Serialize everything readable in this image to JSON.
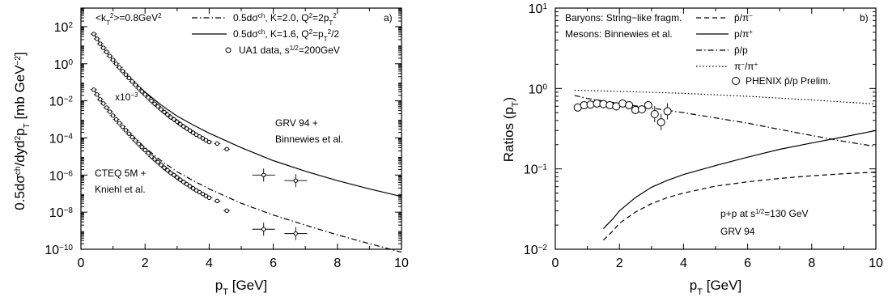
{
  "chart_data": [
    {
      "type": "line",
      "panel_label": "a)",
      "xlabel_base": "p",
      "xlabel_sub": "T",
      "xlabel_unit": " [GeV]",
      "ylabel": "0.5dσ^ch/dyd^2p_T [mb GeV^-2]",
      "xlim": [
        0,
        10
      ],
      "ylim": [
        1e-10,
        1000
      ],
      "yscale": "log",
      "x_ticks": [
        "0",
        "2",
        "4",
        "6",
        "8",
        "10"
      ],
      "y_ticks": [
        "10^-10",
        "10^-8",
        "10^-6",
        "10^-4",
        "10^-2",
        "10^0",
        "10^2"
      ],
      "annotations": {
        "kt": "<k_T^2>=0.8GeV^2",
        "scale": "x10^-3",
        "grv_line1": "GRV 94 +",
        "grv_line2": "Binnewies et al.",
        "cteq_line1": "CTEQ 5M +",
        "cteq_line2": "Kniehl et al."
      },
      "legend": {
        "position": "top-right",
        "entries": [
          {
            "style": "dash-dot",
            "label": "0.5dσ^ch, K=2.0, Q^2=2p_T^2"
          },
          {
            "style": "solid",
            "label": "0.5dσ^ch, K=1.6, Q^2=p_T^2/2"
          },
          {
            "style": "open-circle",
            "label": "UA1 data, s^1/2=200GeV"
          }
        ]
      },
      "series": [
        {
          "style": "solid",
          "x": [
            0.4,
            0.6,
            0.8,
            1.0,
            1.2,
            1.5,
            2.0,
            2.5,
            3.0,
            3.5,
            4.0,
            5.0,
            6.0,
            7.0,
            8.0,
            9.0,
            10.0
          ],
          "y": [
            40,
            12,
            4,
            1.6,
            0.6,
            0.18,
            0.03,
            0.006,
            0.0015,
            0.0005,
            0.00018,
            3e-05,
            6e-06,
            1.6e-06,
            5e-07,
            1.8e-07,
            7e-08
          ]
        },
        {
          "style": "dash-dot",
          "x": [
            0.4,
            0.6,
            0.8,
            1.0,
            1.2,
            1.5,
            2.0,
            2.5,
            3.0,
            3.5,
            4.0,
            5.0,
            6.0,
            7.0,
            8.0,
            9.0,
            10.0
          ],
          "y": [
            0.04,
            0.012,
            0.004,
            0.0016,
            0.0006,
            0.00018,
            3e-05,
            6e-06,
            1.5e-06,
            5e-07,
            1.8e-07,
            3e-08,
            7e-09,
            2e-09,
            6e-10,
            2e-10,
            7e-11
          ]
        },
        {
          "style": "open-circle",
          "x": [
            0.4,
            0.5,
            0.6,
            0.7,
            0.8,
            0.9,
            1.0,
            1.1,
            1.2,
            1.3,
            1.4,
            1.5,
            1.6,
            1.7,
            1.8,
            1.9,
            2.0,
            2.1,
            2.2,
            2.3,
            2.4,
            2.5,
            2.6,
            2.7,
            2.8,
            2.9,
            3.0,
            3.1,
            3.2,
            3.3,
            3.4,
            3.5,
            3.6,
            3.7,
            3.8,
            3.9,
            4.0,
            4.25,
            4.55,
            5.7,
            6.7
          ],
          "y": [
            40,
            22,
            12,
            7.2,
            4.3,
            2.6,
            1.6,
            1.0,
            0.63,
            0.4,
            0.26,
            0.17,
            0.11,
            0.072,
            0.048,
            0.032,
            0.022,
            0.015,
            0.01,
            0.007,
            0.005,
            0.0035,
            0.0025,
            0.0018,
            0.0013,
            0.001,
            0.00075,
            0.00055,
            0.00042,
            0.00032,
            0.00025,
            0.00019,
            0.00015,
            0.00012,
            9.5e-05,
            7.5e-05,
            6e-05,
            5e-05,
            2.5e-05,
            1e-06,
            5e-07
          ]
        },
        {
          "style": "open-circle",
          "x": [
            0.4,
            0.5,
            0.6,
            0.7,
            0.8,
            0.9,
            1.0,
            1.1,
            1.2,
            1.3,
            1.4,
            1.5,
            1.6,
            1.7,
            1.8,
            1.9,
            2.0,
            2.1,
            2.2,
            2.3,
            2.4,
            2.5,
            2.6,
            2.7,
            2.8,
            2.9,
            3.0,
            3.1,
            3.2,
            3.3,
            3.4,
            3.5,
            3.6,
            3.7,
            3.8,
            3.9,
            4.0,
            4.25,
            4.55,
            5.7,
            6.7
          ],
          "y": [
            0.04,
            0.022,
            0.012,
            0.0072,
            0.0043,
            0.0026,
            0.0016,
            0.001,
            0.00063,
            0.0004,
            0.00026,
            0.00017,
            0.00011,
            7.2e-05,
            4.8e-05,
            3.2e-05,
            2.2e-05,
            1.5e-05,
            1e-05,
            7e-06,
            5e-06,
            3.5e-06,
            2.5e-06,
            1.8e-06,
            1.3e-06,
            1e-06,
            7.5e-07,
            5.5e-07,
            4.2e-07,
            3.2e-07,
            2.5e-07,
            1.9e-07,
            1.5e-07,
            1.2e-07,
            9.5e-08,
            7.5e-08,
            6e-08,
            4e-08,
            1.2e-08,
            1.2e-09,
            7e-10
          ]
        }
      ]
    },
    {
      "type": "line",
      "panel_label": "b)",
      "xlabel_base": "p",
      "xlabel_sub": "T",
      "xlabel_unit": " [GeV]",
      "ylabel_main": "Ratios (p",
      "ylabel_sub": "T",
      "ylabel_end": ")",
      "xlim": [
        0,
        10
      ],
      "ylim": [
        0.01,
        10
      ],
      "yscale": "log",
      "x_ticks": [
        "0",
        "2",
        "4",
        "6",
        "8",
        "10"
      ],
      "y_ticks": [
        "10^-2",
        "10^-1",
        "10^0",
        "10^1"
      ],
      "annotations": {
        "baryons": "Baryons: String−like fragm.",
        "mesons": "Mesons: Binnewies et al.",
        "ppline_pre": "p+p at s",
        "ppline_sup": "1/2",
        "ppline_post": "=130 GeV",
        "grv": "GRV 94"
      },
      "legend": {
        "position": "top-right",
        "entries": [
          {
            "style": "dashed",
            "label": "p̄/π⁻"
          },
          {
            "style": "solid",
            "label": "p/π⁺"
          },
          {
            "style": "dash-dot",
            "label": "p̄/p"
          },
          {
            "style": "dotted",
            "label": "π⁻/π⁺"
          },
          {
            "style": "open-circle",
            "label": "PHENIX p̄/p Prelim."
          }
        ]
      },
      "series": [
        {
          "style": "dashed",
          "x": [
            1.5,
            1.8,
            2.0,
            2.5,
            3.0,
            3.5,
            4.0,
            5.0,
            6.0,
            7.0,
            8.0,
            9.0,
            10.0
          ],
          "y": [
            0.013,
            0.017,
            0.021,
            0.029,
            0.037,
            0.044,
            0.05,
            0.061,
            0.069,
            0.076,
            0.082,
            0.087,
            0.091
          ]
        },
        {
          "style": "solid",
          "x": [
            1.5,
            1.8,
            2.0,
            2.5,
            3.0,
            3.5,
            4.0,
            5.0,
            6.0,
            7.0,
            8.0,
            9.0,
            10.0
          ],
          "y": [
            0.018,
            0.024,
            0.03,
            0.044,
            0.059,
            0.072,
            0.085,
            0.11,
            0.14,
            0.175,
            0.21,
            0.25,
            0.3
          ]
        },
        {
          "style": "dash-dot",
          "x": [
            0.6,
            1.0,
            2.0,
            3.0,
            4.0,
            5.0,
            6.0,
            7.0,
            8.0,
            9.0,
            10.0
          ],
          "y": [
            0.82,
            0.75,
            0.65,
            0.57,
            0.5,
            0.43,
            0.37,
            0.31,
            0.26,
            0.22,
            0.19
          ]
        },
        {
          "style": "dotted",
          "x": [
            0.6,
            2.0,
            4.0,
            6.0,
            8.0,
            10.0
          ],
          "y": [
            0.95,
            0.92,
            0.87,
            0.8,
            0.72,
            0.64
          ]
        },
        {
          "style": "open-circle",
          "x": [
            0.7,
            0.9,
            1.1,
            1.3,
            1.5,
            1.7,
            1.9,
            2.1,
            2.3,
            2.5,
            2.7,
            2.9,
            3.1,
            3.3,
            3.5
          ],
          "y": [
            0.58,
            0.62,
            0.63,
            0.65,
            0.64,
            0.62,
            0.6,
            0.65,
            0.62,
            0.54,
            0.55,
            0.62,
            0.48,
            0.38,
            0.52
          ]
        }
      ]
    }
  ]
}
